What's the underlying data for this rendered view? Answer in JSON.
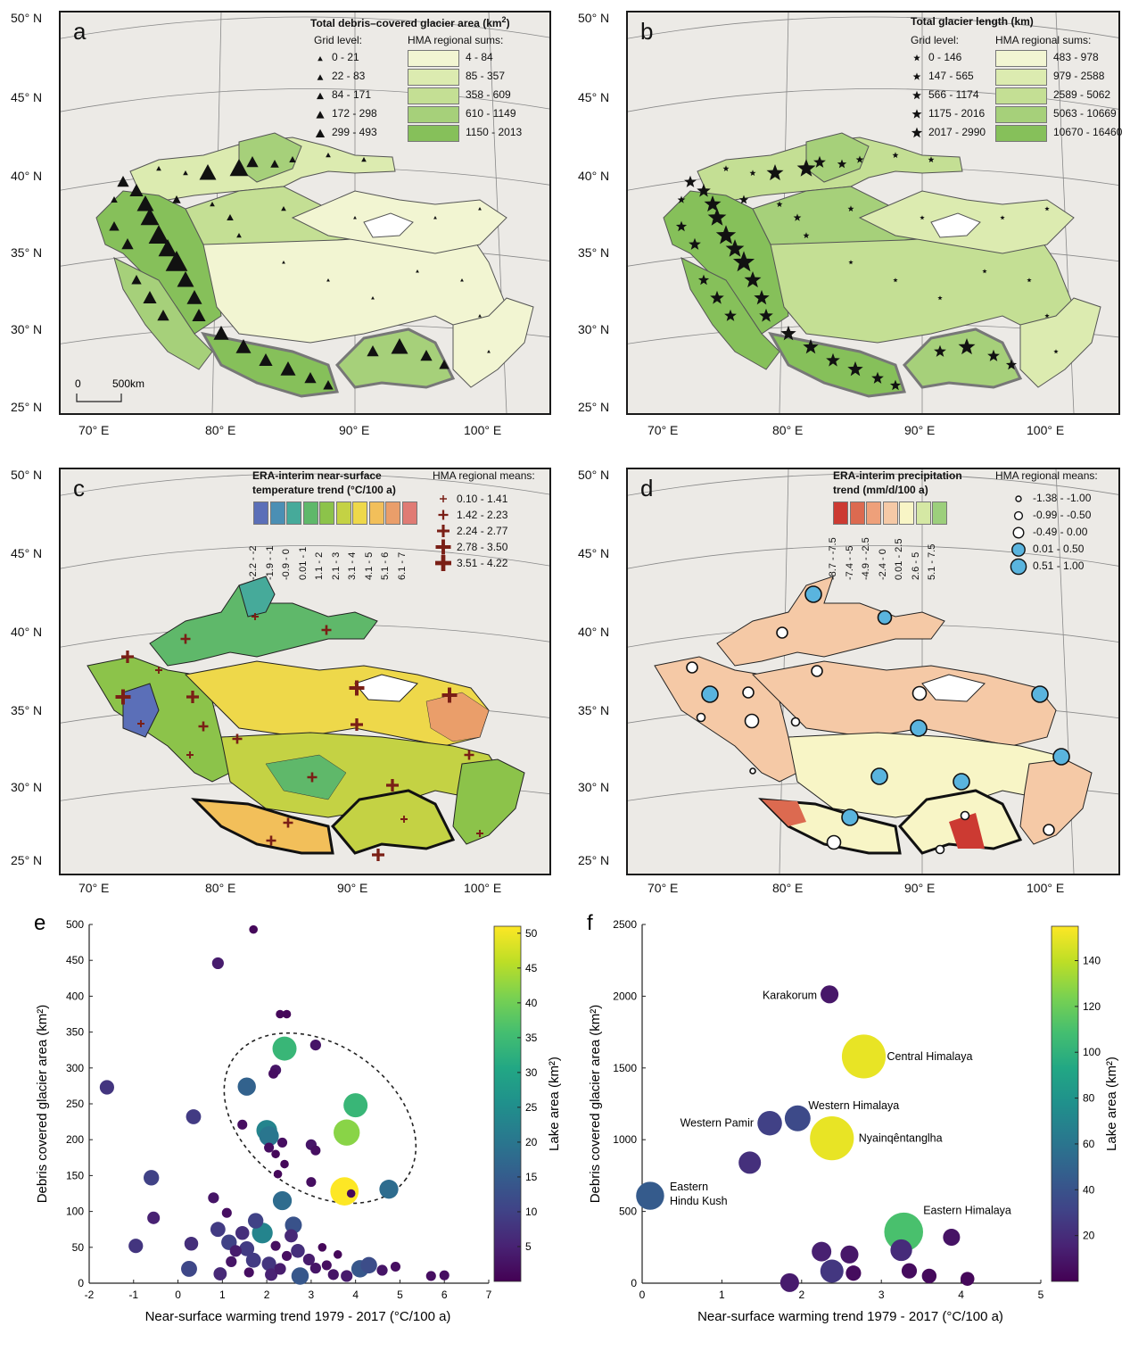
{
  "common_axes": {
    "lat_labels": [
      "50° N",
      "45° N",
      "40° N",
      "35° N",
      "30° N",
      "25° N"
    ],
    "lon_labels": [
      "70° E",
      "80° E",
      "90° E",
      "100° E"
    ]
  },
  "panels": {
    "a": {
      "letter": "a",
      "legend_title": "Total debris–covered glacier area (km",
      "legend_title_sup": "2",
      "legend_title_end": ")",
      "grid_level_label": "Grid level:",
      "regional_label": "HMA regional sums:",
      "grid_levels": [
        "0 - 21",
        "22 - 83",
        "84 - 171",
        "172 - 298",
        "299 - 493"
      ],
      "regional_bins": [
        "4 - 84",
        "85 - 357",
        "358 - 609",
        "610 - 1149",
        "1150 - 2013"
      ],
      "regional_colors": [
        "#f2f5d2",
        "#dcebb0",
        "#c4df94",
        "#a6d07a",
        "#86c05a"
      ],
      "scale_zero": "0",
      "scale_end": "500km",
      "marker_symbol": "triangle"
    },
    "b": {
      "letter": "b",
      "legend_title": "Total glacier length (km)",
      "grid_level_label": "Grid level:",
      "regional_label": "HMA regional sums:",
      "grid_levels": [
        "0 - 146",
        "147 - 565",
        "566 - 1174",
        "1175 - 2016",
        "2017 - 2990"
      ],
      "regional_bins": [
        "483 - 978",
        "979 - 2588",
        "2589 - 5062",
        "5063 - 10669",
        "10670 - 16460"
      ],
      "regional_colors": [
        "#f2f5d2",
        "#dcebb0",
        "#c4df94",
        "#a6d07a",
        "#86c05a"
      ],
      "marker_symbol": "star"
    },
    "c": {
      "letter": "c",
      "legend_title_line1": "ERA-interim near-surface",
      "legend_title_line2": "temperature trend (°C/100 a)",
      "regional_label": "HMA regional means:",
      "bins": [
        "-2.2 - -2",
        "-1.9 - -1",
        "-0.9 - 0",
        "0.01 - 1",
        "1.1 - 2",
        "2.1 - 3",
        "3.1 - 4",
        "4.1 - 5",
        "5.1 - 6",
        "6.1 - 7"
      ],
      "bin_colors": [
        "#5b6fb8",
        "#4b8fb4",
        "#46aa9a",
        "#5fb86a",
        "#8cc34a",
        "#c4d244",
        "#eed84a",
        "#f2bf5a",
        "#ea9e6a",
        "#e07b74"
      ],
      "means": [
        "0.10 - 1.41",
        "1.42 - 2.23",
        "2.24 - 2.77",
        "2.78 - 3.50",
        "3.51 - 4.22"
      ],
      "cross_color": "#7a1f16"
    },
    "d": {
      "letter": "d",
      "legend_title_line1": "ERA-interim precipitation",
      "legend_title_line2": "trend (mm/d/100 a)",
      "regional_label": "HMA regional means:",
      "bins": [
        "-8.7 - -7.5",
        "-7.4 - -5",
        "-4.9 - -2.5",
        "-2.4 - 0",
        "0.01 - 2.5",
        "2.6 - 5",
        "5.1 - 7.5"
      ],
      "bin_colors": [
        "#cc3a32",
        "#dc6a50",
        "#eea07a",
        "#f5c9a6",
        "#f8f5c6",
        "#d5e8a4",
        "#9ccf7c"
      ],
      "means": [
        "-1.38 - -1.00",
        "-0.99 - -0.50",
        "-0.49 - 0.00",
        "0.01 - 0.50",
        "0.51 - 1.00"
      ],
      "circle_fills": [
        "#ffffff",
        "#ffffff",
        "#ffffff",
        "#5ab4de",
        "#5ab4de"
      ]
    }
  },
  "chart_data": [
    {
      "id": "e",
      "type": "scatter",
      "letter": "e",
      "xlabel": "Near-surface warming trend 1979 - 2017 (°C/100 a)",
      "ylabel": "Debris covered glacier area (km²)",
      "colorbar_label": "Lake area (km²)",
      "xlim": [
        -2,
        7
      ],
      "ylim": [
        0,
        500
      ],
      "xticks": [
        -2,
        -1,
        0,
        1,
        2,
        3,
        4,
        5,
        6,
        7
      ],
      "yticks": [
        0,
        50,
        100,
        150,
        200,
        250,
        300,
        350,
        400,
        450,
        500
      ],
      "colorbar_range": [
        0,
        51
      ],
      "colorbar_ticks": [
        5,
        10,
        15,
        20,
        25,
        30,
        35,
        40,
        45,
        50
      ],
      "annotation": "dashed ellipse around high-warming, high-debris points",
      "points": [
        {
          "x": 1.7,
          "y": 493,
          "lake": 1
        },
        {
          "x": 0.9,
          "y": 446,
          "lake": 4
        },
        {
          "x": 2.3,
          "y": 375,
          "lake": 1
        },
        {
          "x": 2.45,
          "y": 375,
          "lake": 1
        },
        {
          "x": -1.6,
          "y": 273,
          "lake": 8
        },
        {
          "x": 0.35,
          "y": 232,
          "lake": 9
        },
        {
          "x": 2.4,
          "y": 327,
          "lake": 34
        },
        {
          "x": 3.1,
          "y": 332,
          "lake": 3
        },
        {
          "x": 2.2,
          "y": 297,
          "lake": 3
        },
        {
          "x": 2.15,
          "y": 292,
          "lake": 2
        },
        {
          "x": 1.55,
          "y": 274,
          "lake": 16
        },
        {
          "x": 1.45,
          "y": 221,
          "lake": 2
        },
        {
          "x": 2.0,
          "y": 213,
          "lake": 23
        },
        {
          "x": 2.05,
          "y": 205,
          "lake": 20
        },
        {
          "x": 2.05,
          "y": 189,
          "lake": 2
        },
        {
          "x": 2.2,
          "y": 180,
          "lake": 1
        },
        {
          "x": 2.35,
          "y": 196,
          "lake": 2
        },
        {
          "x": 2.25,
          "y": 152,
          "lake": 1
        },
        {
          "x": 2.4,
          "y": 166,
          "lake": 1
        },
        {
          "x": 2.35,
          "y": 115,
          "lake": 18
        },
        {
          "x": 3.0,
          "y": 193,
          "lake": 3
        },
        {
          "x": 3.1,
          "y": 185,
          "lake": 2
        },
        {
          "x": 3.0,
          "y": 141,
          "lake": 2
        },
        {
          "x": 4.0,
          "y": 248,
          "lake": 34
        },
        {
          "x": 3.8,
          "y": 210,
          "lake": 42
        },
        {
          "x": 3.75,
          "y": 128,
          "lake": 51
        },
        {
          "x": 3.9,
          "y": 125,
          "lake": 1
        },
        {
          "x": 4.75,
          "y": 131,
          "lake": 18
        },
        {
          "x": -0.6,
          "y": 147,
          "lake": 10
        },
        {
          "x": -0.55,
          "y": 91,
          "lake": 5
        },
        {
          "x": -0.95,
          "y": 52,
          "lake": 8
        },
        {
          "x": 0.3,
          "y": 55,
          "lake": 7
        },
        {
          "x": 0.25,
          "y": 20,
          "lake": 11
        },
        {
          "x": 0.8,
          "y": 119,
          "lake": 3
        },
        {
          "x": 0.9,
          "y": 75,
          "lake": 9
        },
        {
          "x": 0.95,
          "y": 13,
          "lake": 6
        },
        {
          "x": 1.1,
          "y": 98,
          "lake": 2
        },
        {
          "x": 1.15,
          "y": 57,
          "lake": 10
        },
        {
          "x": 1.3,
          "y": 45,
          "lake": 4
        },
        {
          "x": 1.45,
          "y": 70,
          "lake": 7
        },
        {
          "x": 1.55,
          "y": 48,
          "lake": 9
        },
        {
          "x": 1.7,
          "y": 32,
          "lake": 9
        },
        {
          "x": 1.75,
          "y": 87,
          "lake": 10
        },
        {
          "x": 1.9,
          "y": 70,
          "lake": 23
        },
        {
          "x": 2.05,
          "y": 27,
          "lake": 8
        },
        {
          "x": 2.1,
          "y": 12,
          "lake": 5
        },
        {
          "x": 2.3,
          "y": 20,
          "lake": 4
        },
        {
          "x": 2.6,
          "y": 81,
          "lake": 13
        },
        {
          "x": 2.55,
          "y": 66,
          "lake": 6
        },
        {
          "x": 2.7,
          "y": 45,
          "lake": 7
        },
        {
          "x": 2.75,
          "y": 10,
          "lake": 14
        },
        {
          "x": 2.95,
          "y": 33,
          "lake": 4
        },
        {
          "x": 3.1,
          "y": 21,
          "lake": 3
        },
        {
          "x": 3.35,
          "y": 25,
          "lake": 2
        },
        {
          "x": 3.5,
          "y": 12,
          "lake": 3
        },
        {
          "x": 3.8,
          "y": 10,
          "lake": 4
        },
        {
          "x": 4.1,
          "y": 20,
          "lake": 14
        },
        {
          "x": 4.3,
          "y": 25,
          "lake": 12
        },
        {
          "x": 4.6,
          "y": 18,
          "lake": 3
        },
        {
          "x": 4.9,
          "y": 23,
          "lake": 2
        },
        {
          "x": 5.7,
          "y": 10,
          "lake": 2
        },
        {
          "x": 6.0,
          "y": 11,
          "lake": 2
        },
        {
          "x": 1.2,
          "y": 30,
          "lake": 3
        },
        {
          "x": 1.6,
          "y": 15,
          "lake": 2
        },
        {
          "x": 2.2,
          "y": 52,
          "lake": 2
        },
        {
          "x": 2.45,
          "y": 38,
          "lake": 2
        },
        {
          "x": 3.25,
          "y": 50,
          "lake": 1
        },
        {
          "x": 3.6,
          "y": 40,
          "lake": 1
        }
      ]
    },
    {
      "id": "f",
      "type": "scatter",
      "letter": "f",
      "xlabel": "Near-surface warming trend 1979 - 2017 (°C/100 a)",
      "ylabel": "Debris covered glacier area (km²)",
      "colorbar_label": "Lake area (km²)",
      "xlim": [
        0,
        5
      ],
      "ylim": [
        0,
        2500
      ],
      "xticks": [
        0,
        1,
        2,
        3,
        4,
        5
      ],
      "yticks": [
        0,
        500,
        1000,
        1500,
        2000,
        2500
      ],
      "colorbar_range": [
        0,
        155
      ],
      "colorbar_ticks": [
        20,
        40,
        60,
        80,
        100,
        120,
        140
      ],
      "points": [
        {
          "x": 2.35,
          "y": 2013,
          "lake": 10,
          "label": "Karakorum"
        },
        {
          "x": 2.78,
          "y": 1580,
          "lake": 150,
          "label": "Central Himalaya"
        },
        {
          "x": 1.95,
          "y": 1149,
          "lake": 35,
          "label": "Western Himalaya"
        },
        {
          "x": 1.6,
          "y": 1115,
          "lake": 30,
          "label": "Western Pamir"
        },
        {
          "x": 2.38,
          "y": 1010,
          "lake": 150,
          "label": "Nyainqêntanglha"
        },
        {
          "x": 1.35,
          "y": 840,
          "lake": 22,
          "label": ""
        },
        {
          "x": 0.1,
          "y": 609,
          "lake": 45,
          "label": "Eastern\nHindu  Kush"
        },
        {
          "x": 3.28,
          "y": 357,
          "lake": 110,
          "label": "Eastern Himalaya"
        },
        {
          "x": 3.88,
          "y": 320,
          "lake": 8,
          "label": ""
        },
        {
          "x": 2.25,
          "y": 220,
          "lake": 14,
          "label": ""
        },
        {
          "x": 2.6,
          "y": 200,
          "lake": 10,
          "label": ""
        },
        {
          "x": 3.25,
          "y": 230,
          "lake": 20,
          "label": ""
        },
        {
          "x": 2.38,
          "y": 84,
          "lake": 25,
          "label": ""
        },
        {
          "x": 2.65,
          "y": 70,
          "lake": 5,
          "label": ""
        },
        {
          "x": 3.35,
          "y": 86,
          "lake": 5,
          "label": ""
        },
        {
          "x": 3.6,
          "y": 50,
          "lake": 4,
          "label": ""
        },
        {
          "x": 4.08,
          "y": 30,
          "lake": 3,
          "label": ""
        },
        {
          "x": 1.85,
          "y": 4,
          "lake": 12,
          "label": ""
        }
      ]
    }
  ]
}
